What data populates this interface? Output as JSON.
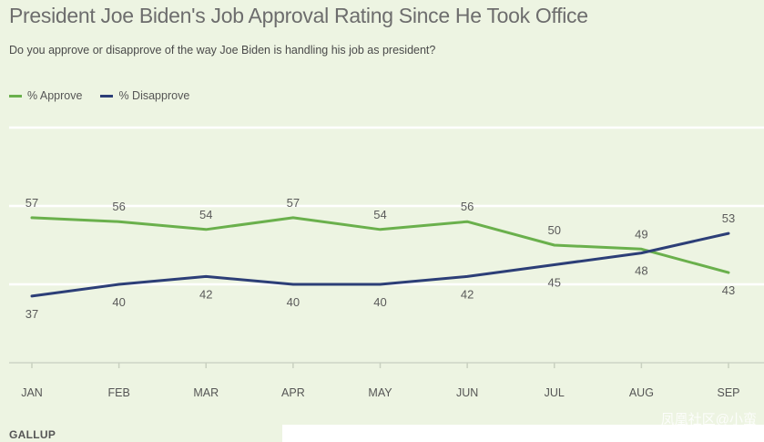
{
  "chart_data": {
    "type": "line",
    "title": "President Joe Biden's Job Approval Rating Since He Took Office",
    "subtitle": "Do you approve or disapprove of the way Joe Biden is handling his job as president?",
    "categories": [
      "JAN",
      "FEB",
      "MAR",
      "APR",
      "MAY",
      "JUN",
      "JUL",
      "AUG",
      "SEP"
    ],
    "series": [
      {
        "name": "% Approve",
        "color": "#6ab04c",
        "values": [
          57,
          56,
          54,
          57,
          54,
          56,
          50,
          49,
          43
        ]
      },
      {
        "name": "% Disapprove",
        "color": "#2c3e77",
        "values": [
          37,
          40,
          42,
          40,
          40,
          42,
          45,
          48,
          53
        ]
      }
    ],
    "ylim": [
      20,
      80
    ],
    "gridlines": [
      20,
      40,
      60,
      80
    ],
    "legend_position": "top-left",
    "source": "GALLUP"
  },
  "watermark": "凤凰社区@小蛮"
}
